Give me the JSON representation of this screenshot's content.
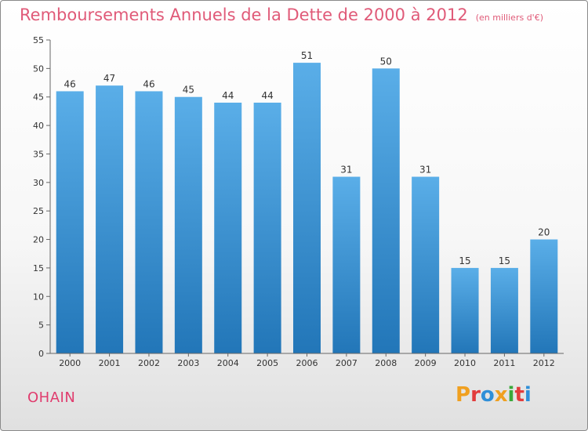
{
  "header": {
    "title": "Remboursements Annuels de la Dette de 2000 à 2012",
    "subtitle": "(en milliers d'€)"
  },
  "footer": {
    "commune": "OHAIN",
    "brand": "Proxiti",
    "brand_colors": [
      "#f0a020",
      "#e23c3c",
      "#2f8fd8",
      "#f0a020",
      "#3aa83a",
      "#e23c3c",
      "#2f8fd8"
    ]
  },
  "chart_data": {
    "type": "bar",
    "title": "Remboursements Annuels de la Dette de 2000 à 2012",
    "subtitle": "(en milliers d'€)",
    "categories": [
      "2000",
      "2001",
      "2002",
      "2003",
      "2004",
      "2005",
      "2006",
      "2007",
      "2008",
      "2009",
      "2010",
      "2011",
      "2012"
    ],
    "values": [
      46,
      47,
      46,
      45,
      44,
      44,
      51,
      31,
      50,
      31,
      15,
      15,
      20
    ],
    "data_labels": [
      "46",
      "47",
      "46",
      "45",
      "44",
      "44",
      "51",
      "31",
      "50",
      "31",
      "15",
      "15",
      "20"
    ],
    "yticks": [
      "0",
      "5",
      "10",
      "15",
      "20",
      "25",
      "30",
      "35",
      "40",
      "45",
      "50",
      "55"
    ],
    "ylim": [
      0,
      55
    ],
    "grid": false,
    "bar_color_top": "#5aaee8",
    "bar_color_bottom": "#2276b8"
  }
}
